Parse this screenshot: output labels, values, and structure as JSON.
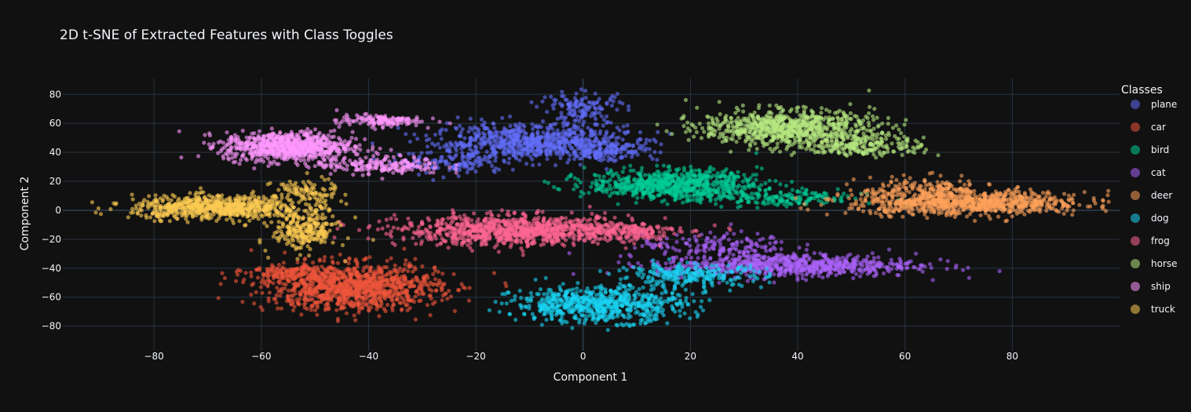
{
  "chart_data": {
    "type": "scatter",
    "title": "2D t-SNE of Extracted Features with Class Toggles",
    "xlabel": "Component 1",
    "ylabel": "Component 2",
    "xlim": [
      -97,
      100
    ],
    "ylim": [
      -97,
      91
    ],
    "xticks": [
      -80,
      -60,
      -40,
      -20,
      0,
      20,
      40,
      60,
      80
    ],
    "yticks": [
      -80,
      -60,
      -40,
      -20,
      0,
      20,
      40,
      60,
      80
    ],
    "grid": true,
    "legend": {
      "title": "Classes",
      "position": "right"
    },
    "series": [
      {
        "name": "plane",
        "color": "#636efa",
        "clusters": [
          {
            "cx": -10,
            "cy": 47,
            "sx": 9,
            "sy": 6,
            "n": 700
          },
          {
            "cx": 0,
            "cy": 70,
            "sx": 4,
            "sy": 6,
            "n": 140
          },
          {
            "cx": 4,
            "cy": 42,
            "sx": 5,
            "sy": 4,
            "n": 150
          },
          {
            "cx": -24,
            "cy": 32,
            "sx": 5,
            "sy": 4,
            "n": 120
          }
        ]
      },
      {
        "name": "car",
        "color": "#ef553b",
        "clusters": [
          {
            "cx": -43,
            "cy": -53,
            "sx": 8,
            "sy": 8,
            "n": 1100
          },
          {
            "cx": -55,
            "cy": -43,
            "sx": 4,
            "sy": 3,
            "n": 120
          }
        ]
      },
      {
        "name": "bird",
        "color": "#00cc96",
        "clusters": [
          {
            "cx": 17,
            "cy": 18,
            "sx": 8,
            "sy": 5,
            "n": 750
          },
          {
            "cx": 36,
            "cy": 8,
            "sx": 8,
            "sy": 3,
            "n": 180
          }
        ]
      },
      {
        "name": "cat",
        "color": "#ab63fa",
        "clusters": [
          {
            "cx": 38,
            "cy": -38,
            "sx": 12,
            "sy": 4,
            "n": 750
          },
          {
            "cx": 25,
            "cy": -24,
            "sx": 7,
            "sy": 4,
            "n": 150
          }
        ]
      },
      {
        "name": "deer",
        "color": "#ffa15a",
        "clusters": [
          {
            "cx": 72,
            "cy": 5,
            "sx": 11,
            "sy": 4,
            "n": 850
          },
          {
            "cx": 64,
            "cy": 15,
            "sx": 6,
            "sy": 4,
            "n": 150
          }
        ]
      },
      {
        "name": "dog",
        "color": "#19d3f3",
        "clusters": [
          {
            "cx": 3,
            "cy": -65,
            "sx": 8,
            "sy": 6,
            "n": 700
          },
          {
            "cx": 20,
            "cy": -45,
            "sx": 7,
            "sy": 4,
            "n": 250
          }
        ]
      },
      {
        "name": "frog",
        "color": "#ff6692",
        "clusters": [
          {
            "cx": -12,
            "cy": -14,
            "sx": 11,
            "sy": 5,
            "n": 1000
          },
          {
            "cx": 8,
            "cy": -14,
            "sx": 5,
            "sy": 3,
            "n": 150
          }
        ]
      },
      {
        "name": "horse",
        "color": "#b6e880",
        "clusters": [
          {
            "cx": 38,
            "cy": 57,
            "sx": 8,
            "sy": 6,
            "n": 800
          },
          {
            "cx": 52,
            "cy": 45,
            "sx": 6,
            "sy": 4,
            "n": 220
          }
        ]
      },
      {
        "name": "ship",
        "color": "#ff97ff",
        "clusters": [
          {
            "cx": -55,
            "cy": 44,
            "sx": 6,
            "sy": 5,
            "n": 800
          },
          {
            "cx": -38,
            "cy": 62,
            "sx": 4,
            "sy": 2,
            "n": 140
          },
          {
            "cx": -38,
            "cy": 31,
            "sx": 6,
            "sy": 3,
            "n": 200
          }
        ]
      },
      {
        "name": "truck",
        "color": "#fecb52",
        "clusters": [
          {
            "cx": -68,
            "cy": 2,
            "sx": 8,
            "sy": 4,
            "n": 700
          },
          {
            "cx": -52,
            "cy": -14,
            "sx": 3,
            "sy": 7,
            "n": 250
          },
          {
            "cx": -52,
            "cy": 12,
            "sx": 3,
            "sy": 5,
            "n": 100
          }
        ]
      }
    ]
  }
}
